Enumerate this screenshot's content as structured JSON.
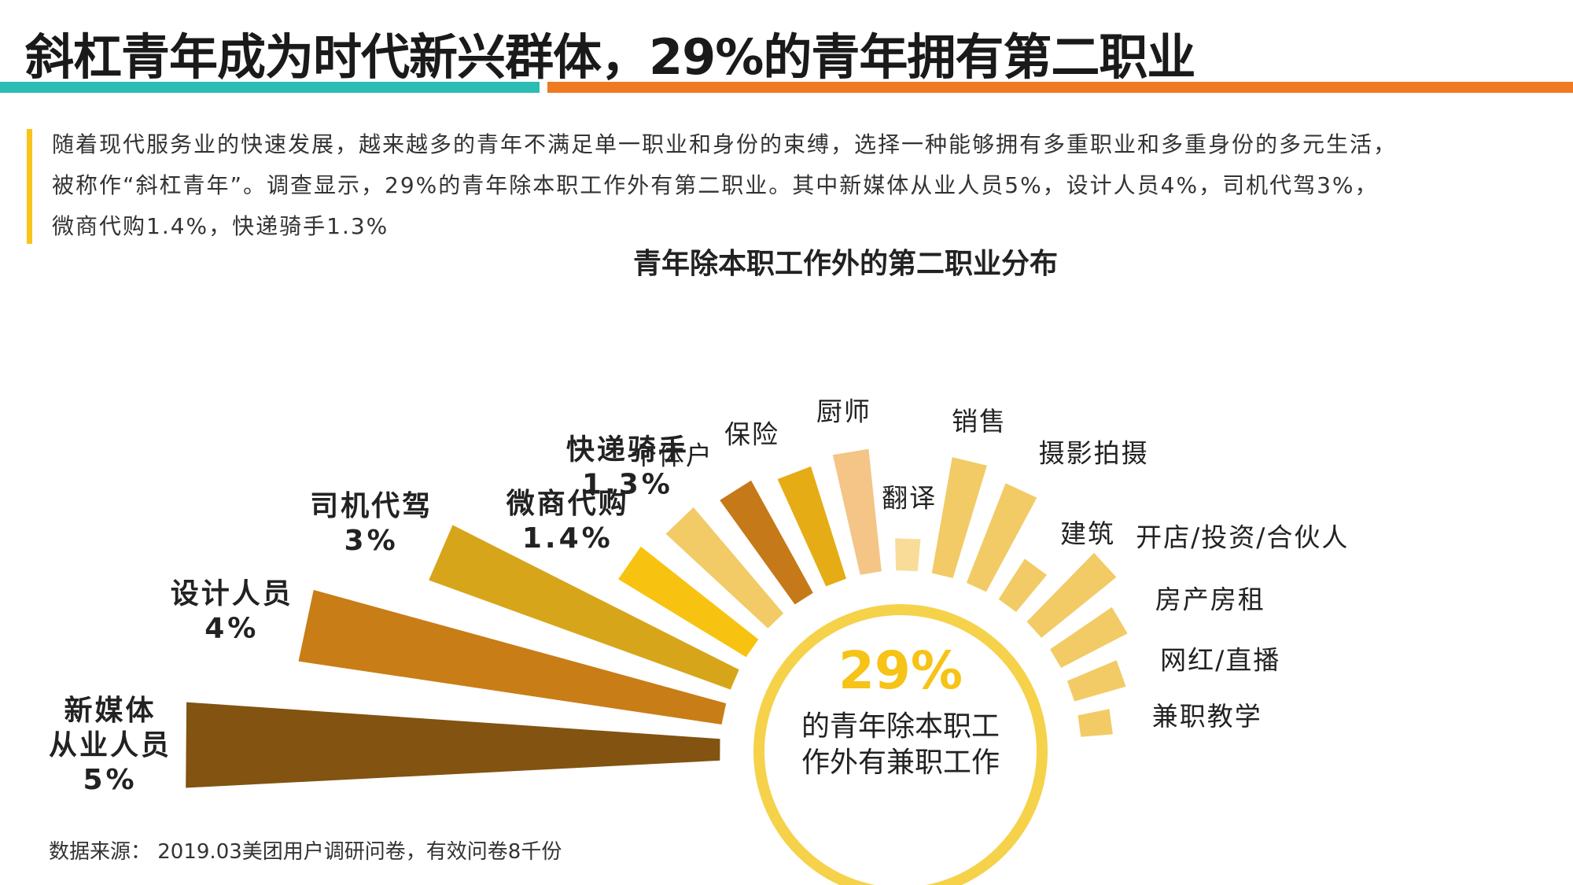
{
  "page": {
    "title": "斜杠青年成为时代新兴群体，29%的青年拥有第二职业",
    "colors": {
      "teal": "#2bbcb4",
      "orange": "#f07a22",
      "intro_accent": "#f8c31c"
    },
    "intro_lines": [
      "随着现代服务业的快速发展，越来越多的青年不满足单一职业和身份的束缚，选择一种能够拥有多重职业和多重身份的多元生活，",
      "被称作“斜杠青年”。调查显示，29%的青年除本职工作外有第二职业。其中新媒体从业人员5%，设计人员4%，司机代驾3%，",
      "微商代购1.4%，快递骑手1.3%"
    ],
    "source": "数据来源：  2019.03美团用户调研问卷，有效问卷8千份"
  },
  "chart_data": {
    "type": "radial-bar",
    "title": "青年除本职工作外的第二职业分布",
    "center": {
      "value": "29%",
      "lines": [
        "的青年除本职工",
        "作外有兼职工作"
      ]
    },
    "unit": "%",
    "categories": [
      {
        "name": "新媒体从业人员",
        "label_lines": [
          "新媒体",
          "从业人员"
        ],
        "value_label": "5%",
        "value": 5.0,
        "color": "#825311",
        "emphasis": true
      },
      {
        "name": "设计人员",
        "label_lines": [
          "设计人员"
        ],
        "value_label": "4%",
        "value": 4.0,
        "color": "#c97d16",
        "emphasis": true
      },
      {
        "name": "司机代驾",
        "label_lines": [
          "司机代驾"
        ],
        "value_label": "3%",
        "value": 3.0,
        "color": "#d7a51a",
        "emphasis": true
      },
      {
        "name": "微商代购",
        "label_lines": [
          "微商代购"
        ],
        "value_label": "1.4%",
        "value": 1.4,
        "color": "#f8c310",
        "emphasis": true
      },
      {
        "name": "快递骑手",
        "label_lines": [
          "快递骑手"
        ],
        "value_label": "1.3%",
        "value": 1.3,
        "color": "#f2cb66",
        "emphasis": true
      },
      {
        "name": "个体户",
        "label_lines": [
          "个体户"
        ],
        "value": 1.2,
        "color": "#c67918",
        "emphasis": false
      },
      {
        "name": "保险",
        "label_lines": [
          "保险"
        ],
        "value": 1.1,
        "color": "#e5ac16",
        "emphasis": false
      },
      {
        "name": "厨师",
        "label_lines": [
          "厨师"
        ],
        "value": 1.15,
        "color": "#f4c586",
        "emphasis": false
      },
      {
        "name": "翻译",
        "label_lines": [
          "翻译"
        ],
        "value": 0.3,
        "color": "#f8dc98",
        "emphasis": false
      },
      {
        "name": "销售",
        "label_lines": [
          "销售"
        ],
        "value": 1.1,
        "color": "#f2cb66",
        "emphasis": false
      },
      {
        "name": "摄影拍摄",
        "label_lines": [
          "摄影拍摄"
        ],
        "value": 1.0,
        "color": "#f2cb66",
        "emphasis": false
      },
      {
        "name": "建筑",
        "label_lines": [
          "建筑"
        ],
        "value": 0.45,
        "color": "#f2cb66",
        "emphasis": false
      },
      {
        "name": "开店/投资/合伙人",
        "label_lines": [
          "开店/投资/合伙人"
        ],
        "value": 0.9,
        "color": "#f2cb66",
        "emphasis": false
      },
      {
        "name": "房产房租",
        "label_lines": [
          "房产房租"
        ],
        "value": 0.7,
        "color": "#f2cb66",
        "emphasis": false
      },
      {
        "name": "网红/直播",
        "label_lines": [
          "网红/直播"
        ],
        "value": 0.5,
        "color": "#f2cb66",
        "emphasis": false
      },
      {
        "name": "兼职教学",
        "label_lines": [
          "兼职教学"
        ],
        "value": 0.3,
        "color": "#f2cb66",
        "emphasis": false
      }
    ]
  }
}
